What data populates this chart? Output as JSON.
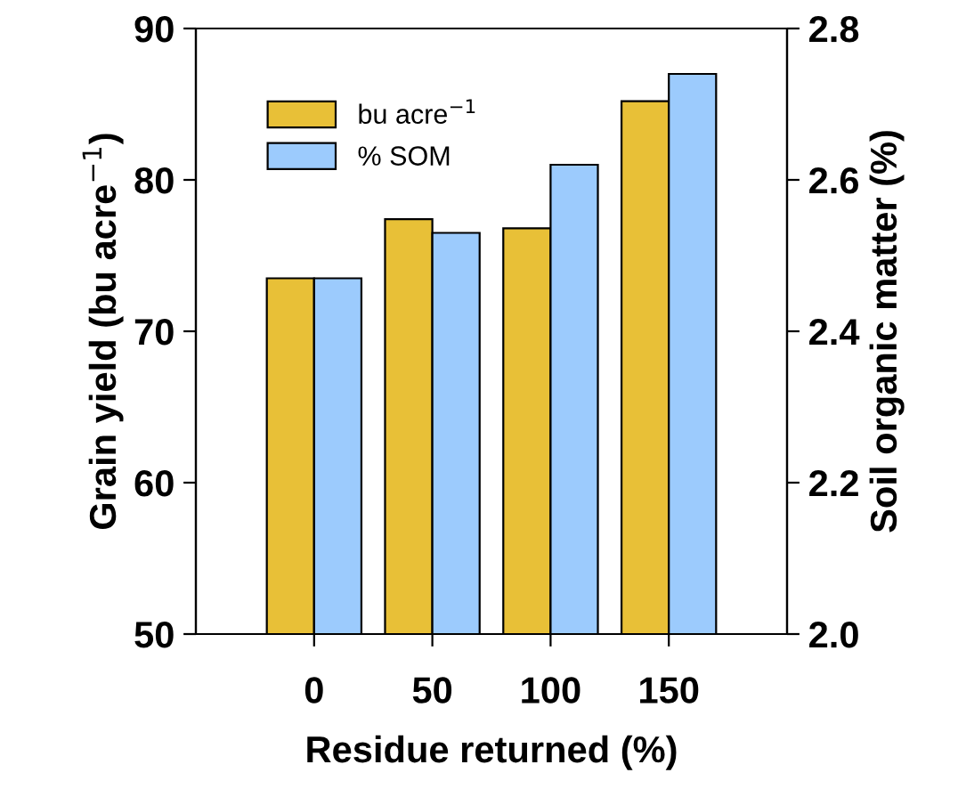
{
  "chart_data": {
    "type": "bar",
    "xlabel": "Residue returned (%)",
    "ylabel": "Grain yield (bu acre$^{−1}$)",
    "y2label": "Soil organic matter (%)",
    "categories": [
      "0",
      "50",
      "100",
      "150"
    ],
    "series": [
      {
        "name": "bu acre$^{−1}$",
        "color": "#e8c037",
        "values": [
          73.5,
          77.4,
          76.8,
          85.2
        ]
      },
      {
        "name": "% SOM",
        "color": "#9ccbfd",
        "values": [
          2.47,
          2.53,
          2.62,
          2.74
        ],
        "axis": "y2"
      }
    ],
    "ylim": [
      50,
      90
    ],
    "yticks": [
      50,
      60,
      70,
      80,
      90
    ],
    "y2lim": [
      2.0,
      2.8
    ],
    "y2ticks": [
      {
        "value": 2.0,
        "label": "2.0"
      },
      {
        "value": 2.2,
        "label": "2.2"
      },
      {
        "value": 2.4,
        "label": "2.4"
      },
      {
        "value": 2.6,
        "label": "2.6"
      },
      {
        "value": 2.8,
        "label": "2.8"
      }
    ],
    "legend": "top left",
    "grid": false
  }
}
